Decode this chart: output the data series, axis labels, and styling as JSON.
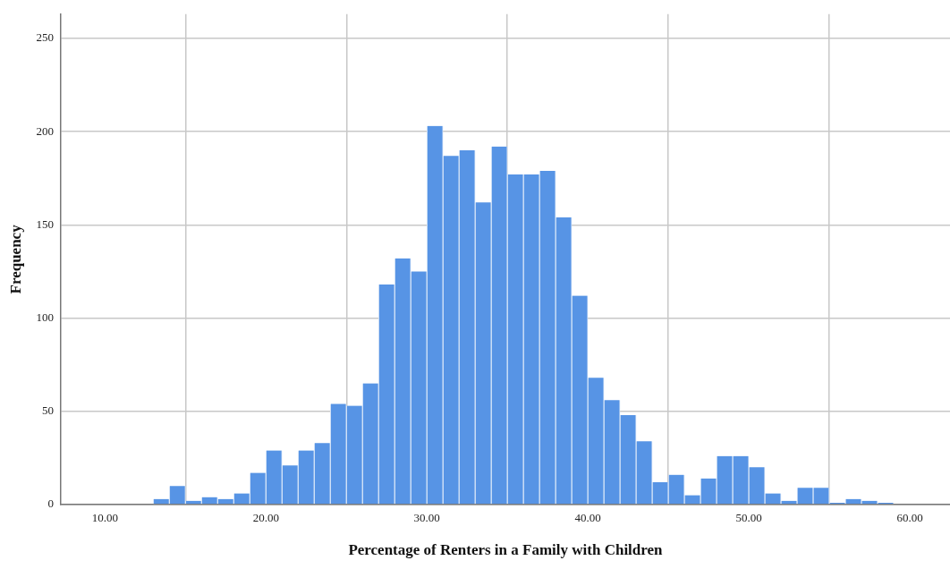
{
  "chart_data": {
    "type": "histogram",
    "xlabel": "Percentage of Renters in a Family with Children",
    "ylabel": "Frequency",
    "bins": [
      13,
      14,
      15,
      16,
      17,
      18,
      19,
      20,
      21,
      22,
      23,
      24,
      25,
      26,
      27,
      28,
      29,
      30,
      31,
      32,
      33,
      34,
      35,
      36,
      37,
      38,
      39,
      40,
      41,
      42,
      43,
      44,
      45,
      46,
      47,
      48,
      49,
      50,
      51,
      52,
      53,
      54,
      55,
      56,
      57,
      58,
      59
    ],
    "values": [
      3,
      10,
      2,
      4,
      3,
      6,
      17,
      29,
      21,
      29,
      33,
      54,
      53,
      65,
      118,
      132,
      125,
      203,
      187,
      190,
      162,
      192,
      177,
      177,
      179,
      154,
      112,
      68,
      56,
      48,
      34,
      12,
      16,
      5,
      14,
      26,
      26,
      20,
      6,
      2,
      9,
      9,
      1,
      3,
      2,
      1
    ],
    "color": "#5794e5",
    "xlim": [
      7.25,
      62.5
    ],
    "xticks": [
      {
        "value": 10,
        "label": "10.00"
      },
      {
        "value": 20,
        "label": "20.00"
      },
      {
        "value": 30,
        "label": "30.00"
      },
      {
        "value": 40,
        "label": "40.00"
      },
      {
        "value": 50,
        "label": "50.00"
      },
      {
        "value": 60,
        "label": "60.00"
      }
    ],
    "ylim": [
      0,
      263
    ],
    "yticks": [
      0,
      50,
      100,
      150,
      200,
      250
    ],
    "grid": true
  }
}
